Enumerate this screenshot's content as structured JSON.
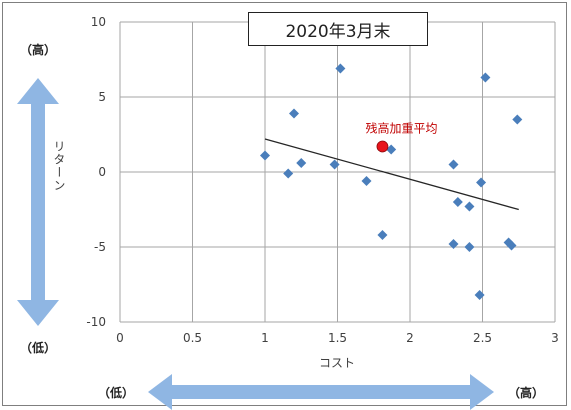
{
  "chart_data": {
    "type": "scatter",
    "title": "2020年3月末",
    "xlabel": "コスト",
    "ylabel": "リターン",
    "xlim": [
      0,
      3
    ],
    "ylim": [
      -10,
      10
    ],
    "x_ticks": [
      "0",
      "0.5",
      "1",
      "1.5",
      "2",
      "2.5",
      "3"
    ],
    "y_ticks": [
      "10",
      "5",
      "0",
      "-5",
      "-10"
    ],
    "grid": true,
    "points": [
      {
        "x": 1.0,
        "y": 1.1
      },
      {
        "x": 1.16,
        "y": -0.1
      },
      {
        "x": 1.2,
        "y": 3.9
      },
      {
        "x": 1.25,
        "y": 0.6
      },
      {
        "x": 1.48,
        "y": 0.5
      },
      {
        "x": 1.52,
        "y": 6.9
      },
      {
        "x": 1.7,
        "y": -0.6
      },
      {
        "x": 1.81,
        "y": -4.2
      },
      {
        "x": 1.87,
        "y": 1.5
      },
      {
        "x": 2.3,
        "y": 0.5
      },
      {
        "x": 2.3,
        "y": -4.8
      },
      {
        "x": 2.33,
        "y": -2.0
      },
      {
        "x": 2.41,
        "y": -2.3
      },
      {
        "x": 2.41,
        "y": -5.0
      },
      {
        "x": 2.48,
        "y": -8.2
      },
      {
        "x": 2.49,
        "y": -0.7
      },
      {
        "x": 2.52,
        "y": 6.3
      },
      {
        "x": 2.68,
        "y": -4.7
      },
      {
        "x": 2.7,
        "y": -4.9
      },
      {
        "x": 2.74,
        "y": 3.5
      }
    ],
    "highlight": {
      "label": "残高加重平均",
      "x": 1.81,
      "y": 1.7,
      "color": "#e8141b"
    },
    "trendline": {
      "x1": 1.0,
      "y1": 2.2,
      "x2": 2.75,
      "y2": -2.5
    },
    "marker_color": "#4a7ebb",
    "high_label": "（高）",
    "low_label": "（低）"
  }
}
